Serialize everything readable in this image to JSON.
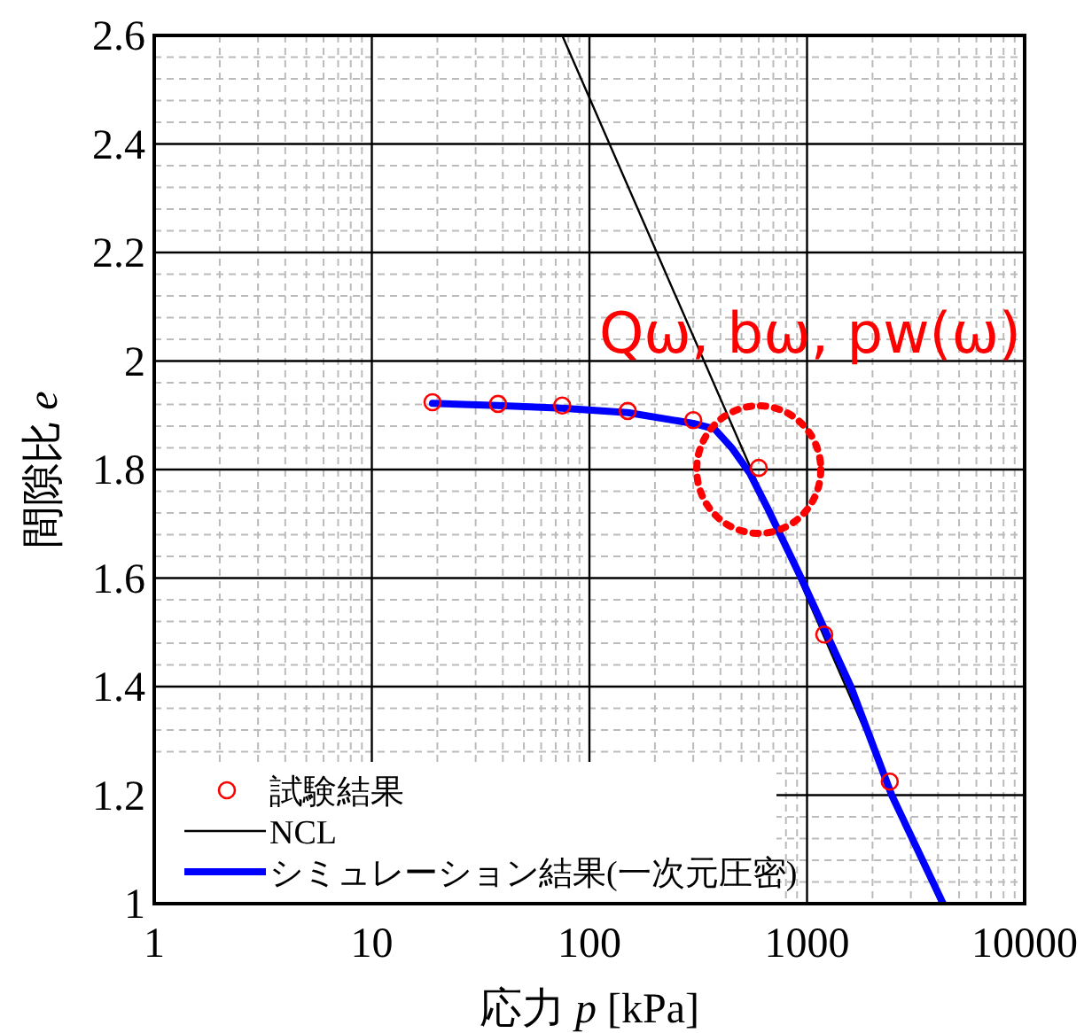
{
  "chart_data": {
    "type": "line",
    "xlabel": "応力 *p* [kPa]",
    "ylabel": "間隙比 *e*",
    "log": "x",
    "grid": true,
    "legend": "bottom left",
    "xlim": [
      1,
      10000
    ],
    "ylim": [
      1,
      2.6
    ],
    "xticks": [
      1,
      10,
      100,
      1000,
      10000
    ],
    "yticks": [
      1,
      1.2,
      1.4,
      1.6,
      1.8,
      2,
      2.2,
      2.4,
      2.6
    ],
    "annotations": [
      {
        "text": "Qω,  bω,  pw(ω)",
        "x": 600,
        "y": 1.8
      }
    ],
    "series": [
      {
        "name": "試験結果",
        "type": "scatter",
        "marker": "circle",
        "color": "#ff0000",
        "x": [
          19,
          38,
          75,
          150,
          300,
          600,
          1200,
          2400
        ],
        "values": [
          1.924,
          1.921,
          1.918,
          1.908,
          1.891,
          1.803,
          1.496,
          1.225
        ]
      },
      {
        "name": "NCL",
        "line_style": "solid",
        "color": "#000000",
        "x": [
          75,
          4100
        ],
        "values": [
          2.6,
          1.0
        ]
      },
      {
        "name": "シミュレーション結果(一次元圧密)",
        "line_style": "solid",
        "color": "#0000ff",
        "x": [
          19,
          38,
          75,
          150,
          300,
          376,
          453,
          546,
          660,
          940,
          1590,
          2450,
          4220
        ],
        "values": [
          1.922,
          1.918,
          1.913,
          1.905,
          1.885,
          1.875,
          1.839,
          1.793,
          1.728,
          1.6,
          1.4,
          1.2,
          1.0
        ]
      }
    ]
  }
}
